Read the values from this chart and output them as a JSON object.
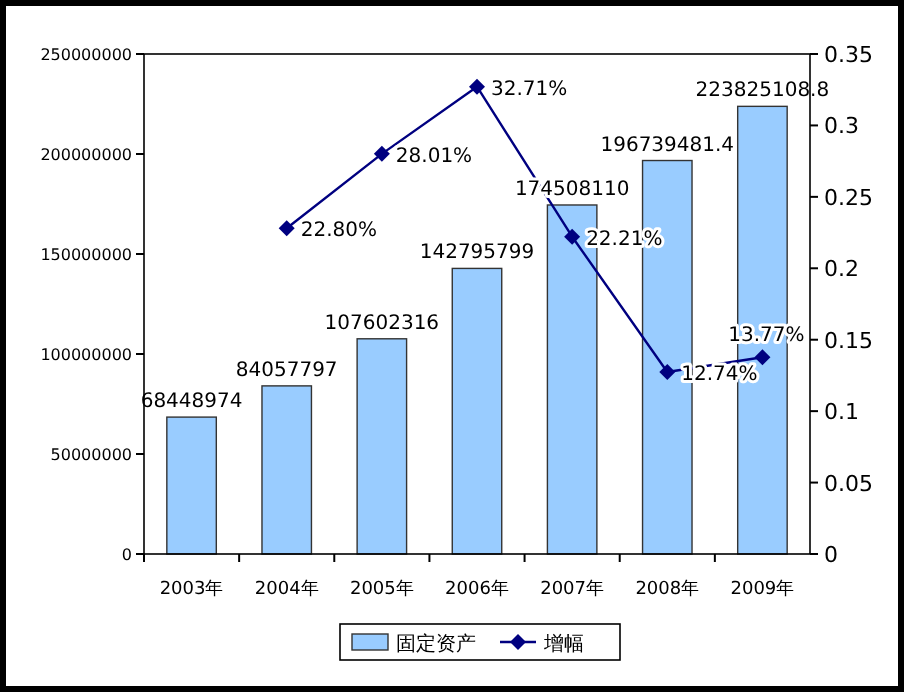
{
  "chart_data": {
    "type": "bar",
    "categories": [
      "2003年",
      "2004年",
      "2005年",
      "2006年",
      "2007年",
      "2008年",
      "2009年"
    ],
    "series": [
      {
        "name": "固定资产",
        "color": "#99ccff",
        "values": [
          68448974,
          84057797,
          107602316,
          142795799,
          174508110,
          196739481.4,
          223825108.8
        ],
        "value_labels": [
          "68448974",
          "84057797",
          "107602316",
          "142795799",
          "174508110",
          "196739481.4",
          "223825108.8"
        ]
      },
      {
        "name": "增幅",
        "type": "line",
        "axis": "y2",
        "color": "#000080",
        "marker": "diamond",
        "values": [
          null,
          0.228,
          0.2801,
          0.3271,
          0.2221,
          0.1274,
          0.1377
        ],
        "value_labels": [
          null,
          "22.80%",
          "28.01%",
          "32.71%",
          "22.21%",
          "12.74%",
          "13.77%"
        ]
      }
    ],
    "ylim": [
      0,
      250000000
    ],
    "yticks": [
      0,
      50000000,
      100000000,
      150000000,
      200000000,
      250000000
    ],
    "y2lim": [
      0,
      0.35
    ],
    "y2ticks": [
      0,
      0.05,
      0.1,
      0.15,
      0.2,
      0.25,
      0.3,
      0.35
    ],
    "grid": false,
    "legend": "bottom"
  }
}
